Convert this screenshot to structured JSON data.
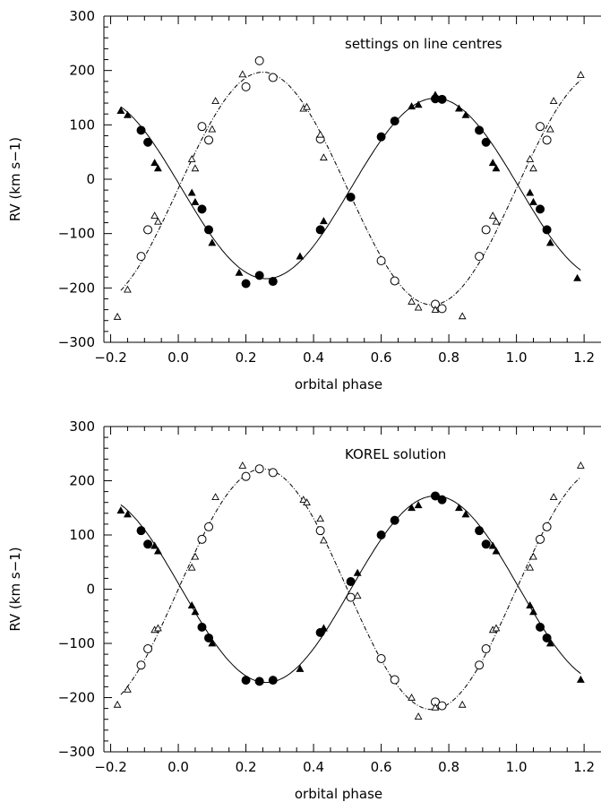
{
  "chart_data": [
    {
      "type": "scatter",
      "title": "settings on line centres",
      "xlabel": "orbital phase",
      "ylabel": "RV (km s−1)",
      "xlim": [
        -0.22,
        1.25
      ],
      "ylim": [
        -300,
        300
      ],
      "xticks": [
        -0.2,
        0.0,
        0.2,
        0.4,
        0.6,
        0.8,
        1.0,
        1.2
      ],
      "xtick_labels": [
        "−0.2",
        "0.0",
        "0.2",
        "0.4",
        "0.6",
        "0.8",
        "1.0",
        "1.2"
      ],
      "yticks": [
        -300,
        -200,
        -100,
        0,
        100,
        200,
        300
      ],
      "ytick_labels": [
        "−300",
        "−200",
        "−100",
        "0",
        "100",
        "200",
        "300"
      ],
      "curves": [
        {
          "style": "solid",
          "gamma": -17,
          "K": 166,
          "phase0": 0.0
        },
        {
          "style": "dashdot",
          "gamma": -17,
          "K": 214,
          "phase0": 0.0
        }
      ],
      "series": [
        {
          "marker": "filled-circle",
          "points": [
            [
              -0.11,
              90
            ],
            [
              -0.09,
              68
            ],
            [
              0.07,
              -55
            ],
            [
              0.09,
              -93
            ],
            [
              0.2,
              -192
            ],
            [
              0.24,
              -177
            ],
            [
              0.28,
              -188
            ],
            [
              0.42,
              -93
            ],
            [
              0.51,
              -33
            ],
            [
              0.6,
              78
            ],
            [
              0.64,
              107
            ],
            [
              0.76,
              148
            ],
            [
              0.78,
              147
            ],
            [
              0.89,
              90
            ],
            [
              0.91,
              68
            ],
            [
              1.07,
              -55
            ],
            [
              1.09,
              -93
            ]
          ]
        },
        {
          "marker": "open-circle",
          "points": [
            [
              -0.11,
              -142
            ],
            [
              -0.09,
              -93
            ],
            [
              0.07,
              97
            ],
            [
              0.09,
              72
            ],
            [
              0.2,
              170
            ],
            [
              0.24,
              218
            ],
            [
              0.28,
              187
            ],
            [
              0.42,
              74
            ],
            [
              0.6,
              -150
            ],
            [
              0.64,
              -187
            ],
            [
              0.76,
              -230
            ],
            [
              0.78,
              -238
            ],
            [
              0.89,
              -142
            ],
            [
              0.91,
              -93
            ],
            [
              1.07,
              97
            ],
            [
              1.09,
              72
            ]
          ]
        },
        {
          "marker": "filled-triangle",
          "points": [
            [
              -0.17,
              126
            ],
            [
              -0.15,
              118
            ],
            [
              -0.07,
              30
            ],
            [
              -0.06,
              20
            ],
            [
              0.04,
              -25
            ],
            [
              0.05,
              -42
            ],
            [
              0.1,
              -117
            ],
            [
              0.18,
              -172
            ],
            [
              0.36,
              -142
            ],
            [
              0.43,
              -77
            ],
            [
              0.69,
              134
            ],
            [
              0.71,
              137
            ],
            [
              0.76,
              155
            ],
            [
              0.83,
              130
            ],
            [
              0.85,
              118
            ],
            [
              0.93,
              30
            ],
            [
              0.94,
              20
            ],
            [
              1.04,
              -25
            ],
            [
              1.05,
              -42
            ],
            [
              1.1,
              -117
            ],
            [
              1.18,
              -182
            ]
          ]
        },
        {
          "marker": "open-triangle",
          "points": [
            [
              -0.18,
              -253
            ],
            [
              -0.15,
              -203
            ],
            [
              -0.07,
              -67
            ],
            [
              -0.06,
              -78
            ],
            [
              0.04,
              37
            ],
            [
              0.05,
              20
            ],
            [
              0.1,
              92
            ],
            [
              0.11,
              144
            ],
            [
              0.19,
              193
            ],
            [
              0.37,
              130
            ],
            [
              0.38,
              133
            ],
            [
              0.42,
              82
            ],
            [
              0.43,
              40
            ],
            [
              0.69,
              -225
            ],
            [
              0.71,
              -236
            ],
            [
              0.76,
              -240
            ],
            [
              0.84,
              -252
            ],
            [
              0.93,
              -67
            ],
            [
              0.94,
              -78
            ],
            [
              1.04,
              37
            ],
            [
              1.05,
              20
            ],
            [
              1.1,
              92
            ],
            [
              1.11,
              144
            ],
            [
              1.19,
              192
            ]
          ]
        }
      ]
    },
    {
      "type": "scatter",
      "title": "KOREL solution",
      "xlabel": "orbital phase",
      "ylabel": "RV (km s−1)",
      "xlim": [
        -0.22,
        1.25
      ],
      "ylim": [
        -300,
        300
      ],
      "xticks": [
        -0.2,
        0.0,
        0.2,
        0.4,
        0.6,
        0.8,
        1.0,
        1.2
      ],
      "xtick_labels": [
        "−0.2",
        "0.0",
        "0.2",
        "0.4",
        "0.6",
        "0.8",
        "1.0",
        "1.2"
      ],
      "yticks": [
        -300,
        -200,
        -100,
        0,
        100,
        200,
        300
      ],
      "ytick_labels": [
        "−300",
        "−200",
        "−100",
        "0",
        "100",
        "200",
        "300"
      ],
      "curves": [
        {
          "style": "solid",
          "gamma": 0,
          "K": 172,
          "phase0": 0.0
        },
        {
          "style": "dashdot",
          "gamma": 0,
          "K": 222,
          "phase0": 0.0
        }
      ],
      "series": [
        {
          "marker": "filled-circle",
          "points": [
            [
              -0.11,
              108
            ],
            [
              -0.09,
              83
            ],
            [
              0.07,
              -70
            ],
            [
              0.09,
              -90
            ],
            [
              0.2,
              -168
            ],
            [
              0.24,
              -170
            ],
            [
              0.28,
              -168
            ],
            [
              0.42,
              -80
            ],
            [
              0.51,
              14
            ],
            [
              0.6,
              100
            ],
            [
              0.64,
              127
            ],
            [
              0.76,
              172
            ],
            [
              0.78,
              165
            ],
            [
              0.89,
              108
            ],
            [
              0.91,
              83
            ],
            [
              1.07,
              -70
            ],
            [
              1.09,
              -90
            ]
          ]
        },
        {
          "marker": "open-circle",
          "points": [
            [
              -0.11,
              -140
            ],
            [
              -0.09,
              -110
            ],
            [
              0.07,
              92
            ],
            [
              0.09,
              115
            ],
            [
              0.2,
              208
            ],
            [
              0.24,
              222
            ],
            [
              0.28,
              215
            ],
            [
              0.42,
              108
            ],
            [
              0.51,
              -15
            ],
            [
              0.6,
              -128
            ],
            [
              0.64,
              -167
            ],
            [
              0.76,
              -208
            ],
            [
              0.78,
              -215
            ],
            [
              0.89,
              -140
            ],
            [
              0.91,
              -110
            ],
            [
              1.07,
              92
            ],
            [
              1.09,
              115
            ]
          ]
        },
        {
          "marker": "filled-triangle",
          "points": [
            [
              -0.17,
              145
            ],
            [
              -0.15,
              138
            ],
            [
              -0.07,
              80
            ],
            [
              -0.06,
              70
            ],
            [
              0.04,
              -30
            ],
            [
              0.05,
              -42
            ],
            [
              0.1,
              -100
            ],
            [
              0.36,
              -147
            ],
            [
              0.43,
              -72
            ],
            [
              0.53,
              30
            ],
            [
              0.69,
              150
            ],
            [
              0.71,
              155
            ],
            [
              0.83,
              150
            ],
            [
              0.85,
              138
            ],
            [
              0.93,
              80
            ],
            [
              0.94,
              70
            ],
            [
              1.04,
              -30
            ],
            [
              1.05,
              -42
            ],
            [
              1.1,
              -100
            ],
            [
              1.19,
              -167
            ]
          ]
        },
        {
          "marker": "open-triangle",
          "points": [
            [
              -0.18,
              -213
            ],
            [
              -0.15,
              -185
            ],
            [
              -0.07,
              -75
            ],
            [
              -0.06,
              -72
            ],
            [
              0.04,
              40
            ],
            [
              0.05,
              60
            ],
            [
              0.11,
              170
            ],
            [
              0.19,
              228
            ],
            [
              0.37,
              165
            ],
            [
              0.38,
              160
            ],
            [
              0.42,
              130
            ],
            [
              0.43,
              90
            ],
            [
              0.53,
              -12
            ],
            [
              0.69,
              -200
            ],
            [
              0.71,
              -235
            ],
            [
              0.76,
              -218
            ],
            [
              0.84,
              -213
            ],
            [
              0.93,
              -75
            ],
            [
              0.94,
              -72
            ],
            [
              1.04,
              40
            ],
            [
              1.05,
              60
            ],
            [
              1.11,
              170
            ],
            [
              1.19,
              228
            ]
          ]
        }
      ]
    }
  ]
}
